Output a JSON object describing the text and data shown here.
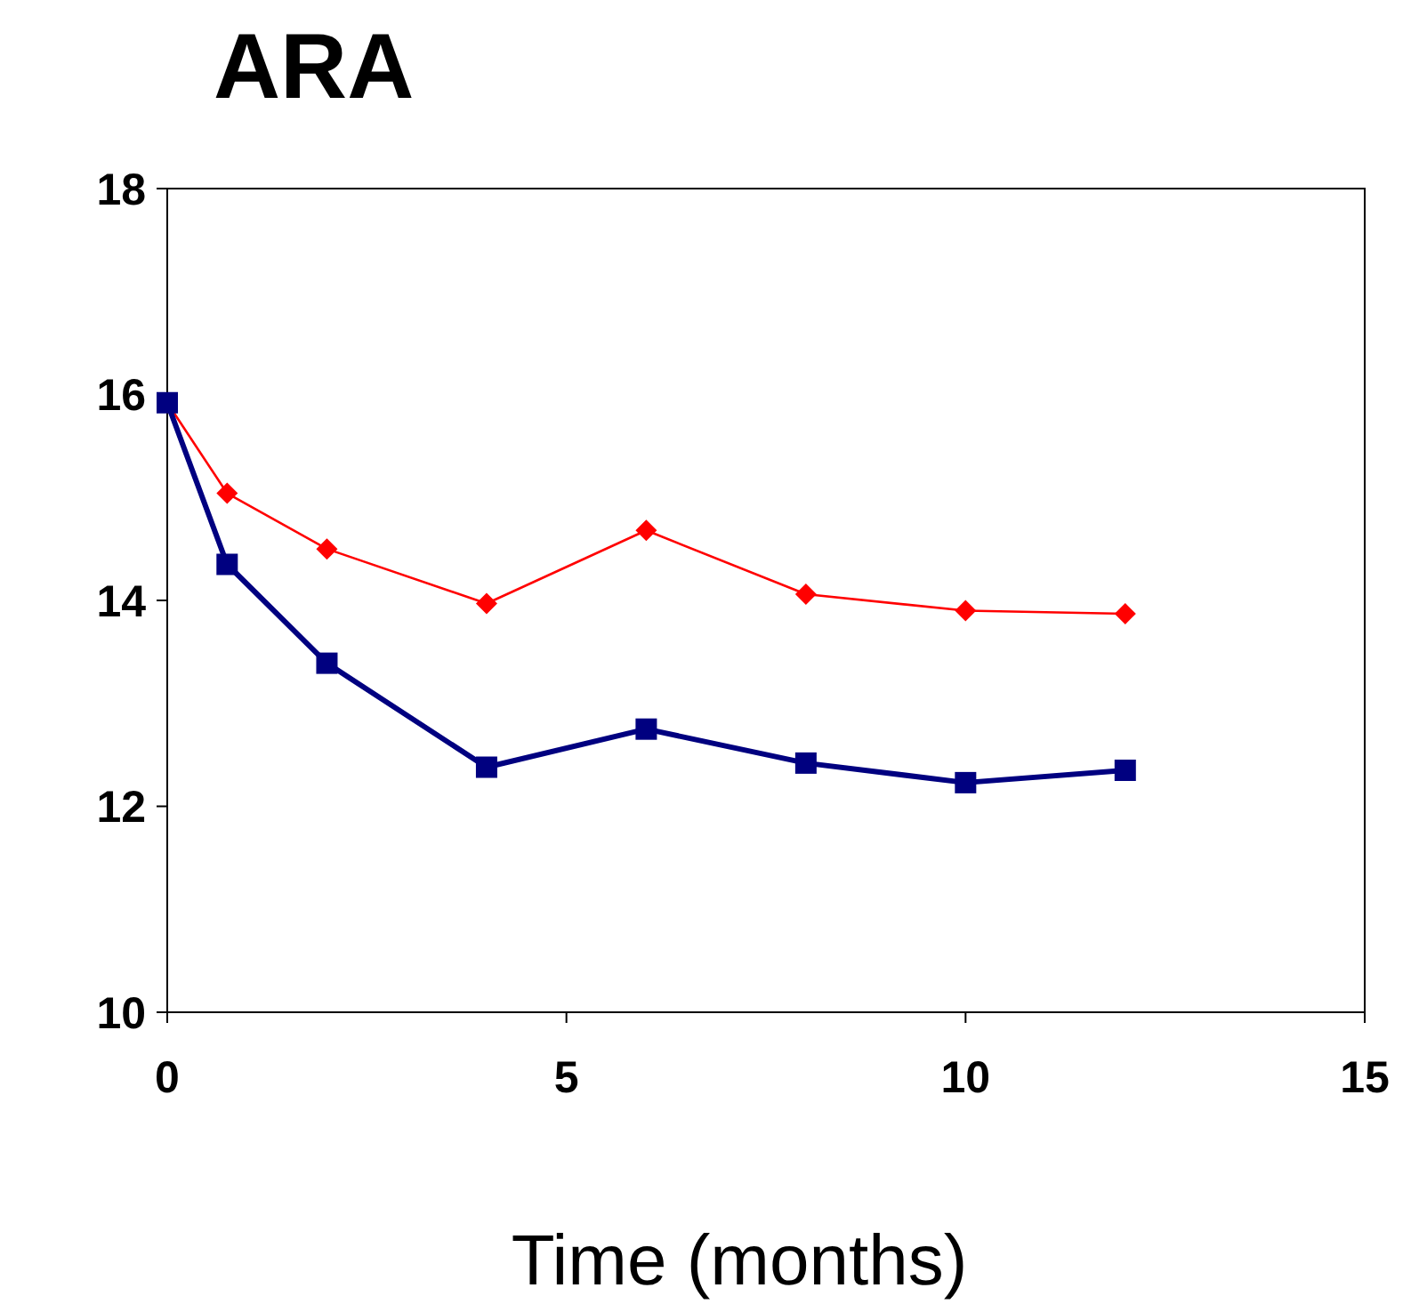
{
  "chart_data": {
    "type": "line",
    "title": "ARA",
    "xlabel": "Time (months)",
    "x": [
      0,
      0.75,
      2,
      4,
      6,
      8,
      10,
      12
    ],
    "series": [
      {
        "color": "#ff0000",
        "marker": "diamond",
        "values": [
          15.92,
          15.04,
          14.5,
          13.97,
          14.68,
          14.06,
          13.9,
          13.87
        ]
      },
      {
        "color": "#000080",
        "marker": "square",
        "values": [
          15.92,
          14.35,
          13.39,
          12.38,
          12.75,
          12.42,
          12.23,
          12.35
        ]
      }
    ],
    "xlim": [
      0,
      15
    ],
    "xticks": [
      0,
      5,
      10,
      15
    ],
    "ylim": [
      10,
      18
    ],
    "yticks": [
      10,
      12,
      14,
      16,
      18
    ],
    "grid": false,
    "line_style": "solid"
  }
}
